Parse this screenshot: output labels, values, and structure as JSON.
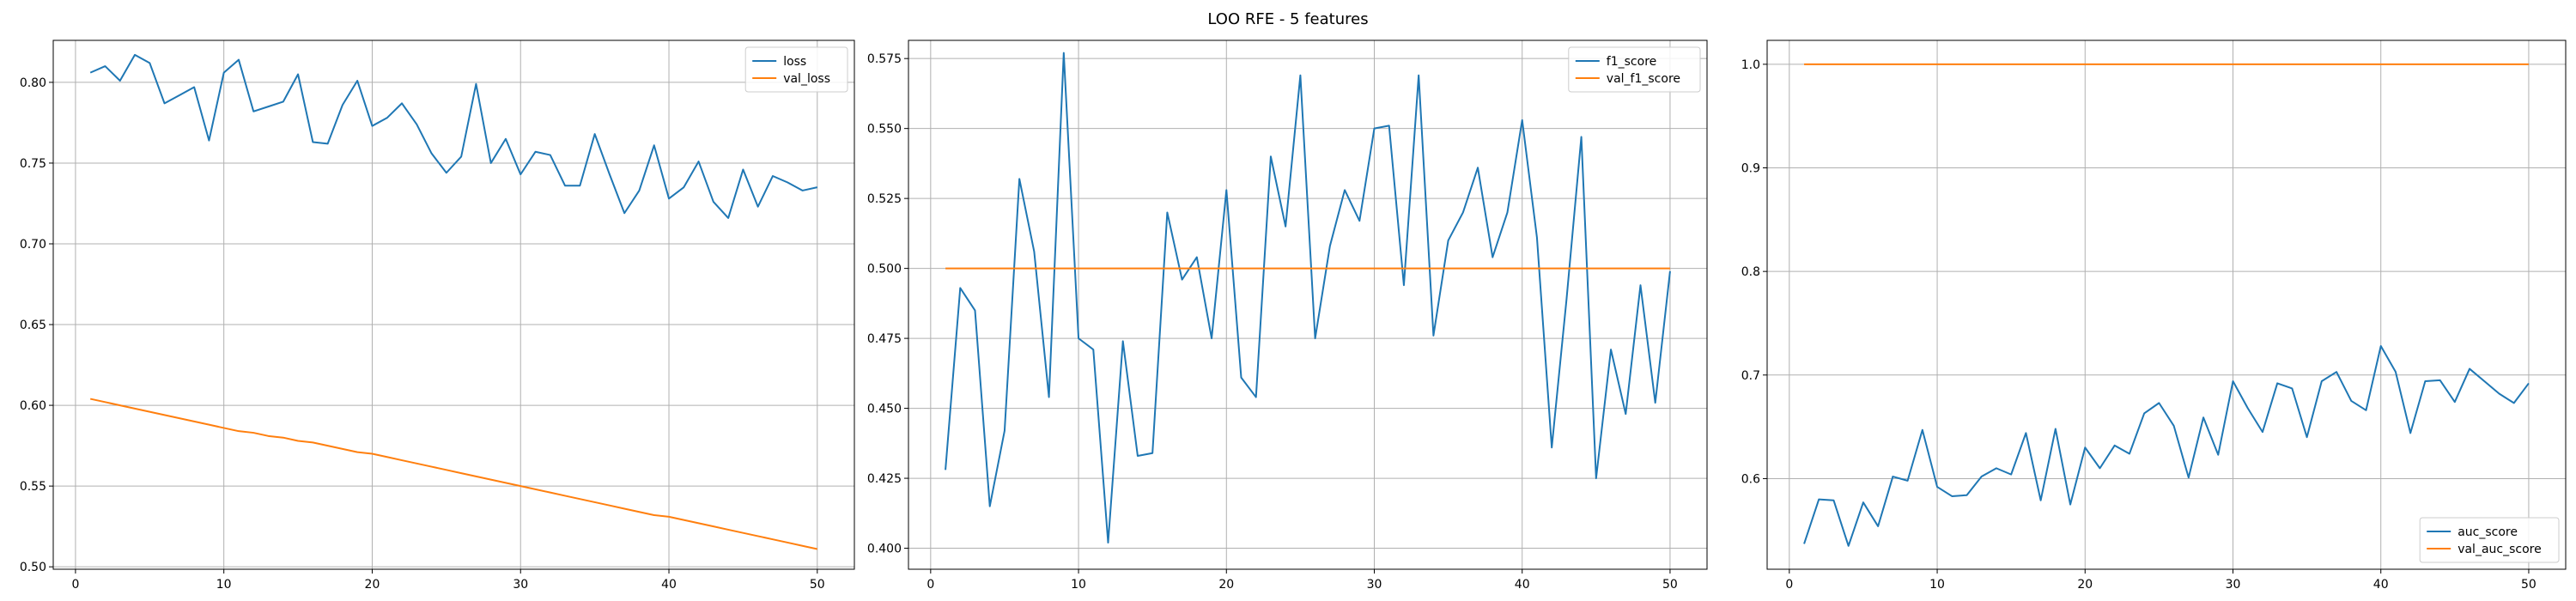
{
  "figure": {
    "title": "LOO RFE - 5 features",
    "colors": {
      "series_1": "#1f77b4",
      "series_2": "#ff7f0e",
      "grid": "#b0b0b0"
    }
  },
  "chart_data": [
    {
      "type": "line",
      "title": "",
      "xlabel": "",
      "ylabel": "",
      "grid": true,
      "legend_position": "upper right",
      "xlim": [
        -1.5,
        52.5
      ],
      "ylim": [
        0.4985,
        0.826
      ],
      "xticks": [
        0,
        10,
        20,
        30,
        40,
        50
      ],
      "yticks": [
        0.5,
        0.55,
        0.6,
        0.65,
        0.7,
        0.75,
        0.8
      ],
      "ytick_labels": [
        "0.50",
        "0.55",
        "0.60",
        "0.65",
        "0.70",
        "0.75",
        "0.80"
      ],
      "x": [
        1,
        2,
        3,
        4,
        5,
        6,
        7,
        8,
        9,
        10,
        11,
        12,
        13,
        14,
        15,
        16,
        17,
        18,
        19,
        20,
        21,
        22,
        23,
        24,
        25,
        26,
        27,
        28,
        29,
        30,
        31,
        32,
        33,
        34,
        35,
        36,
        37,
        38,
        39,
        40,
        41,
        42,
        43,
        44,
        45,
        46,
        47,
        48,
        49,
        50
      ],
      "series": [
        {
          "name": "loss",
          "color": "#1f77b4",
          "values": [
            0.806,
            0.81,
            0.801,
            0.817,
            0.812,
            0.787,
            0.792,
            0.797,
            0.764,
            0.806,
            0.814,
            0.782,
            0.785,
            0.788,
            0.805,
            0.763,
            0.762,
            0.786,
            0.801,
            0.773,
            0.778,
            0.787,
            0.774,
            0.756,
            0.744,
            0.754,
            0.799,
            0.75,
            0.765,
            0.743,
            0.757,
            0.755,
            0.736,
            0.736,
            0.768,
            0.743,
            0.719,
            0.733,
            0.761,
            0.728,
            0.735,
            0.751,
            0.726,
            0.716,
            0.746,
            0.723,
            0.742,
            0.738,
            0.733,
            0.735
          ]
        },
        {
          "name": "val_loss",
          "color": "#ff7f0e",
          "values": [
            0.604,
            0.602,
            0.6,
            0.598,
            0.596,
            0.594,
            0.592,
            0.59,
            0.588,
            0.586,
            0.584,
            0.583,
            0.581,
            0.58,
            0.578,
            0.577,
            0.575,
            0.573,
            0.571,
            0.57,
            0.568,
            0.566,
            0.564,
            0.562,
            0.56,
            0.558,
            0.556,
            0.554,
            0.552,
            0.55,
            0.548,
            0.546,
            0.544,
            0.542,
            0.54,
            0.538,
            0.536,
            0.534,
            0.532,
            0.531,
            0.529,
            0.527,
            0.525,
            0.523,
            0.521,
            0.519,
            0.517,
            0.515,
            0.513,
            0.511
          ]
        }
      ]
    },
    {
      "type": "line",
      "title": "",
      "xlabel": "",
      "ylabel": "",
      "grid": true,
      "legend_position": "upper right",
      "xlim": [
        -1.5,
        52.5
      ],
      "ylim": [
        0.3925,
        0.5815
      ],
      "xticks": [
        0,
        10,
        20,
        30,
        40,
        50
      ],
      "yticks": [
        0.4,
        0.425,
        0.45,
        0.475,
        0.5,
        0.525,
        0.55,
        0.575
      ],
      "ytick_labels": [
        "0.400",
        "0.425",
        "0.450",
        "0.475",
        "0.500",
        "0.525",
        "0.550",
        "0.575"
      ],
      "x": [
        1,
        2,
        3,
        4,
        5,
        6,
        7,
        8,
        9,
        10,
        11,
        12,
        13,
        14,
        15,
        16,
        17,
        18,
        19,
        20,
        21,
        22,
        23,
        24,
        25,
        26,
        27,
        28,
        29,
        30,
        31,
        32,
        33,
        34,
        35,
        36,
        37,
        38,
        39,
        40,
        41,
        42,
        43,
        44,
        45,
        46,
        47,
        48,
        49,
        50
      ],
      "series": [
        {
          "name": "f1_score",
          "color": "#1f77b4",
          "values": [
            0.428,
            0.493,
            0.485,
            0.415,
            0.442,
            0.532,
            0.506,
            0.454,
            0.577,
            0.475,
            0.471,
            0.402,
            0.474,
            0.433,
            0.434,
            0.52,
            0.496,
            0.504,
            0.475,
            0.528,
            0.461,
            0.454,
            0.54,
            0.515,
            0.569,
            0.475,
            0.508,
            0.528,
            0.517,
            0.55,
            0.551,
            0.494,
            0.569,
            0.476,
            0.51,
            0.52,
            0.536,
            0.504,
            0.52,
            0.553,
            0.511,
            0.436,
            0.489,
            0.547,
            0.425,
            0.471,
            0.448,
            0.494,
            0.452,
            0.499
          ]
        },
        {
          "name": "val_f1_score",
          "color": "#ff7f0e",
          "values": [
            0.5,
            0.5,
            0.5,
            0.5,
            0.5,
            0.5,
            0.5,
            0.5,
            0.5,
            0.5,
            0.5,
            0.5,
            0.5,
            0.5,
            0.5,
            0.5,
            0.5,
            0.5,
            0.5,
            0.5,
            0.5,
            0.5,
            0.5,
            0.5,
            0.5,
            0.5,
            0.5,
            0.5,
            0.5,
            0.5,
            0.5,
            0.5,
            0.5,
            0.5,
            0.5,
            0.5,
            0.5,
            0.5,
            0.5,
            0.5,
            0.5,
            0.5,
            0.5,
            0.5,
            0.5,
            0.5,
            0.5,
            0.5,
            0.5,
            0.5
          ]
        }
      ]
    },
    {
      "type": "line",
      "title": "",
      "xlabel": "",
      "ylabel": "",
      "grid": true,
      "legend_position": "lower right",
      "xlim": [
        -1.5,
        52.5
      ],
      "ylim": [
        0.5125,
        1.0231
      ],
      "xticks": [
        0,
        10,
        20,
        30,
        40,
        50
      ],
      "yticks": [
        0.6,
        0.7,
        0.8,
        0.9,
        1.0
      ],
      "ytick_labels": [
        "0.6",
        "0.7",
        "0.8",
        "0.9",
        "1.0"
      ],
      "x": [
        1,
        2,
        3,
        4,
        5,
        6,
        7,
        8,
        9,
        10,
        11,
        12,
        13,
        14,
        15,
        16,
        17,
        18,
        19,
        20,
        21,
        22,
        23,
        24,
        25,
        26,
        27,
        28,
        29,
        30,
        31,
        32,
        33,
        34,
        35,
        36,
        37,
        38,
        39,
        40,
        41,
        42,
        43,
        44,
        45,
        46,
        47,
        48,
        49,
        50
      ],
      "series": [
        {
          "name": "auc_score",
          "color": "#1f77b4",
          "values": [
            0.537,
            0.58,
            0.579,
            0.535,
            0.577,
            0.554,
            0.602,
            0.598,
            0.647,
            0.592,
            0.583,
            0.584,
            0.602,
            0.61,
            0.604,
            0.644,
            0.579,
            0.648,
            0.575,
            0.63,
            0.61,
            0.632,
            0.624,
            0.663,
            0.673,
            0.651,
            0.601,
            0.659,
            0.623,
            0.694,
            0.668,
            0.645,
            0.692,
            0.687,
            0.64,
            0.694,
            0.703,
            0.675,
            0.666,
            0.728,
            0.703,
            0.644,
            0.694,
            0.695,
            0.674,
            0.706,
            0.694,
            0.682,
            0.673,
            0.692
          ]
        },
        {
          "name": "val_auc_score",
          "color": "#ff7f0e",
          "values": [
            1,
            1,
            1,
            1,
            1,
            1,
            1,
            1,
            1,
            1,
            1,
            1,
            1,
            1,
            1,
            1,
            1,
            1,
            1,
            1,
            1,
            1,
            1,
            1,
            1,
            1,
            1,
            1,
            1,
            1,
            1,
            1,
            1,
            1,
            1,
            1,
            1,
            1,
            1,
            1,
            1,
            1,
            1,
            1,
            1,
            1,
            1,
            1,
            1,
            1
          ]
        }
      ]
    }
  ]
}
